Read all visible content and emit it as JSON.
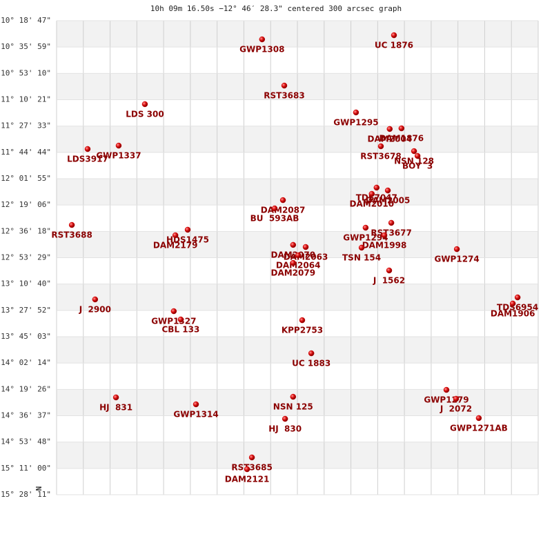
{
  "chart_data": {
    "type": "scatter",
    "title": "10h 09m 16.50s −12° 46′ 28.3\" centered 300 arcsec graph",
    "north_label": "N",
    "color": "#cc0000",
    "grid": true,
    "xlim": [
      0,
      18
    ],
    "xticks": [
      0,
      1,
      2,
      3,
      4,
      5,
      6,
      7,
      8,
      9,
      10,
      11,
      12,
      13,
      14,
      15,
      16,
      17,
      18
    ],
    "ylim": [
      -15.4697,
      -10.3131
    ],
    "yticks": [
      {
        "value": -10.3131,
        "label": "-10° 18' 47\""
      },
      {
        "value": -10.5997,
        "label": "-10° 35' 59\""
      },
      {
        "value": -10.8861,
        "label": "-10° 53' 10\""
      },
      {
        "value": -11.1725,
        "label": "-11° 10' 21\""
      },
      {
        "value": -11.4592,
        "label": "-11° 27' 33\""
      },
      {
        "value": -11.7456,
        "label": "-11° 44' 44\""
      },
      {
        "value": -12.0319,
        "label": "-12° 01' 55\""
      },
      {
        "value": -12.3183,
        "label": "-12° 19' 06\""
      },
      {
        "value": -12.605,
        "label": "-12° 36' 18\""
      },
      {
        "value": -12.8914,
        "label": "-12° 53' 29\""
      },
      {
        "value": -13.1778,
        "label": "-13° 10' 40\""
      },
      {
        "value": -13.4644,
        "label": "-13° 27' 52\""
      },
      {
        "value": -13.7508,
        "label": "-13° 45' 03\""
      },
      {
        "value": -14.0372,
        "label": "-14° 02' 14\""
      },
      {
        "value": -14.3239,
        "label": "-14° 19' 26\""
      },
      {
        "value": -14.6103,
        "label": "-14° 36' 37\""
      },
      {
        "value": -14.8967,
        "label": "-14° 53' 48\""
      },
      {
        "value": -15.1833,
        "label": "-15° 11' 00\""
      },
      {
        "value": -15.4697,
        "label": "-15° 28' 11\""
      }
    ],
    "point_labels": [
      "GWP1308",
      "UC 1876",
      "RST3683",
      "LDS 300",
      "GWP1295",
      "DAM2004",
      "DAM1876",
      "RST3678",
      "NSN 128",
      "BOY  3",
      "LDS3917",
      "GWP1337",
      "TDS7047",
      "DAM2005",
      "DAM2010",
      "DAM2087",
      "BU  593AB",
      "RST3688",
      "RST3677",
      "GWP1294",
      "DAM1998",
      "HDS1475",
      "DAM2179",
      "TSN 154",
      "GWP1274",
      "DAM2070",
      "DAM2063",
      "DAM2064",
      "DAM2079",
      "J  1562",
      "TDS6954",
      "DAM1906",
      "J  2900",
      "GWP1327",
      "CBL 133",
      "KPP2753",
      "UC 1883",
      "GWP1279",
      "J  2072",
      "GWP1271AB",
      "HJ  831",
      "GWP1314",
      "NSN 125",
      "HJ  830",
      "RST3685",
      "DAM2121"
    ],
    "x": [
      7.68,
      12.61,
      8.51,
      3.3,
      11.19,
      12.45,
      12.89,
      12.12,
      13.36,
      13.49,
      1.16,
      2.32,
      11.96,
      12.38,
      11.78,
      8.46,
      8.15,
      0.57,
      12.51,
      11.55,
      12.25,
      4.9,
      4.44,
      11.4,
      14.96,
      8.84,
      9.31,
      9.03,
      8.84,
      12.43,
      17.23,
      17.05,
      1.44,
      4.38,
      4.64,
      9.18,
      9.52,
      14.57,
      14.93,
      15.78,
      2.22,
      5.21,
      8.84,
      8.54,
      7.3,
      7.12
    ],
    "values": [
      -10.516,
      -10.471,
      -11.019,
      -11.221,
      -11.311,
      -11.491,
      -11.484,
      -11.679,
      -11.732,
      -11.784,
      -11.709,
      -11.672,
      -12.129,
      -12.16,
      -12.197,
      -12.265,
      -12.355,
      -12.535,
      -12.512,
      -12.565,
      -12.647,
      -12.587,
      -12.647,
      -12.782,
      -12.798,
      -12.752,
      -12.775,
      -12.865,
      -12.948,
      -13.03,
      -13.323,
      -13.39,
      -13.345,
      -13.473,
      -13.563,
      -13.571,
      -13.931,
      -14.329,
      -14.426,
      -14.636,
      -14.411,
      -14.486,
      -14.404,
      -14.644,
      -15.064,
      -15.192
    ]
  }
}
